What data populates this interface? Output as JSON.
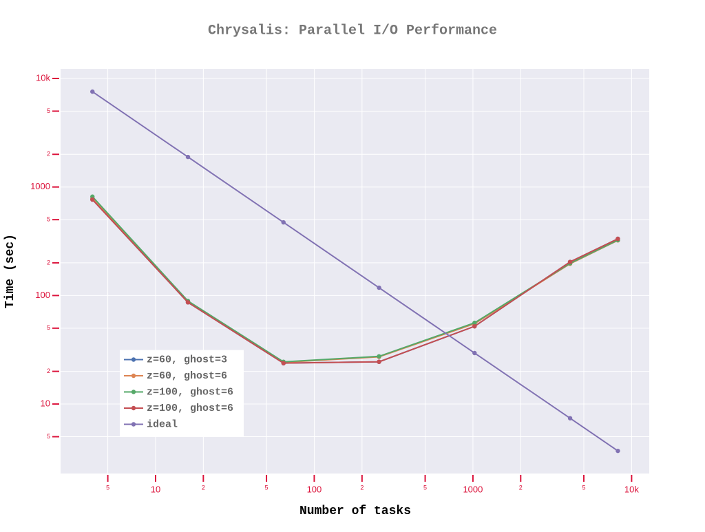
{
  "chart_data": {
    "type": "line",
    "title": "Chrysalis: Parallel I/O Performance",
    "x_label": "Number of tasks",
    "y_label": "Time (sec)",
    "x": [
      4,
      16,
      64,
      256,
      1024,
      4096,
      8192
    ],
    "series": [
      {
        "name": "z=60, ghost=3",
        "color": "#4c72b0",
        "values": [
          766,
          86.5,
          23.8,
          24.5,
          52,
          204,
          333
        ]
      },
      {
        "name": "z=60, ghost=6",
        "color": "#dd8452",
        "values": [
          780,
          88,
          24.2,
          27.2,
          55,
          196,
          322
        ]
      },
      {
        "name": "z=100, ghost=6",
        "color": "#55a868",
        "values": [
          815,
          89,
          24.5,
          27.5,
          56,
          198,
          324
        ]
      },
      {
        "name": "z=100, ghost=6",
        "color": "#c44e52",
        "values": [
          766,
          86.5,
          23.8,
          24.5,
          52,
          204,
          333
        ]
      },
      {
        "name": "ideal",
        "color": "#8172b3",
        "values": [
          7560,
          1890,
          472,
          118,
          29.5,
          7.4,
          3.7
        ]
      }
    ],
    "xlog": true,
    "ylog": true,
    "xlim": [
      2.52,
      12915
    ],
    "ylim": [
      2.29,
      12270
    ],
    "xticks": [
      5,
      10,
      {
        "value": 20,
        "label": "2"
      },
      {
        "value": 50,
        "label": "5"
      },
      100,
      {
        "value": 200,
        "label": "2"
      },
      {
        "value": 500,
        "label": "5"
      },
      1000,
      {
        "value": 2000,
        "label": "2"
      },
      {
        "value": 5000,
        "label": "5"
      },
      {
        "value": 10000,
        "label": "10k"
      }
    ],
    "yticks": [
      5,
      10,
      {
        "value": 20,
        "label": "2"
      },
      {
        "value": 50,
        "label": "5"
      },
      100,
      {
        "value": 200,
        "label": "2"
      },
      {
        "value": 500,
        "label": "5"
      },
      1000,
      {
        "value": 2000,
        "label": "2"
      },
      {
        "value": 5000,
        "label": "5"
      },
      {
        "value": 10000,
        "label": "10k"
      }
    ],
    "grid": true,
    "legend": "lower left"
  }
}
